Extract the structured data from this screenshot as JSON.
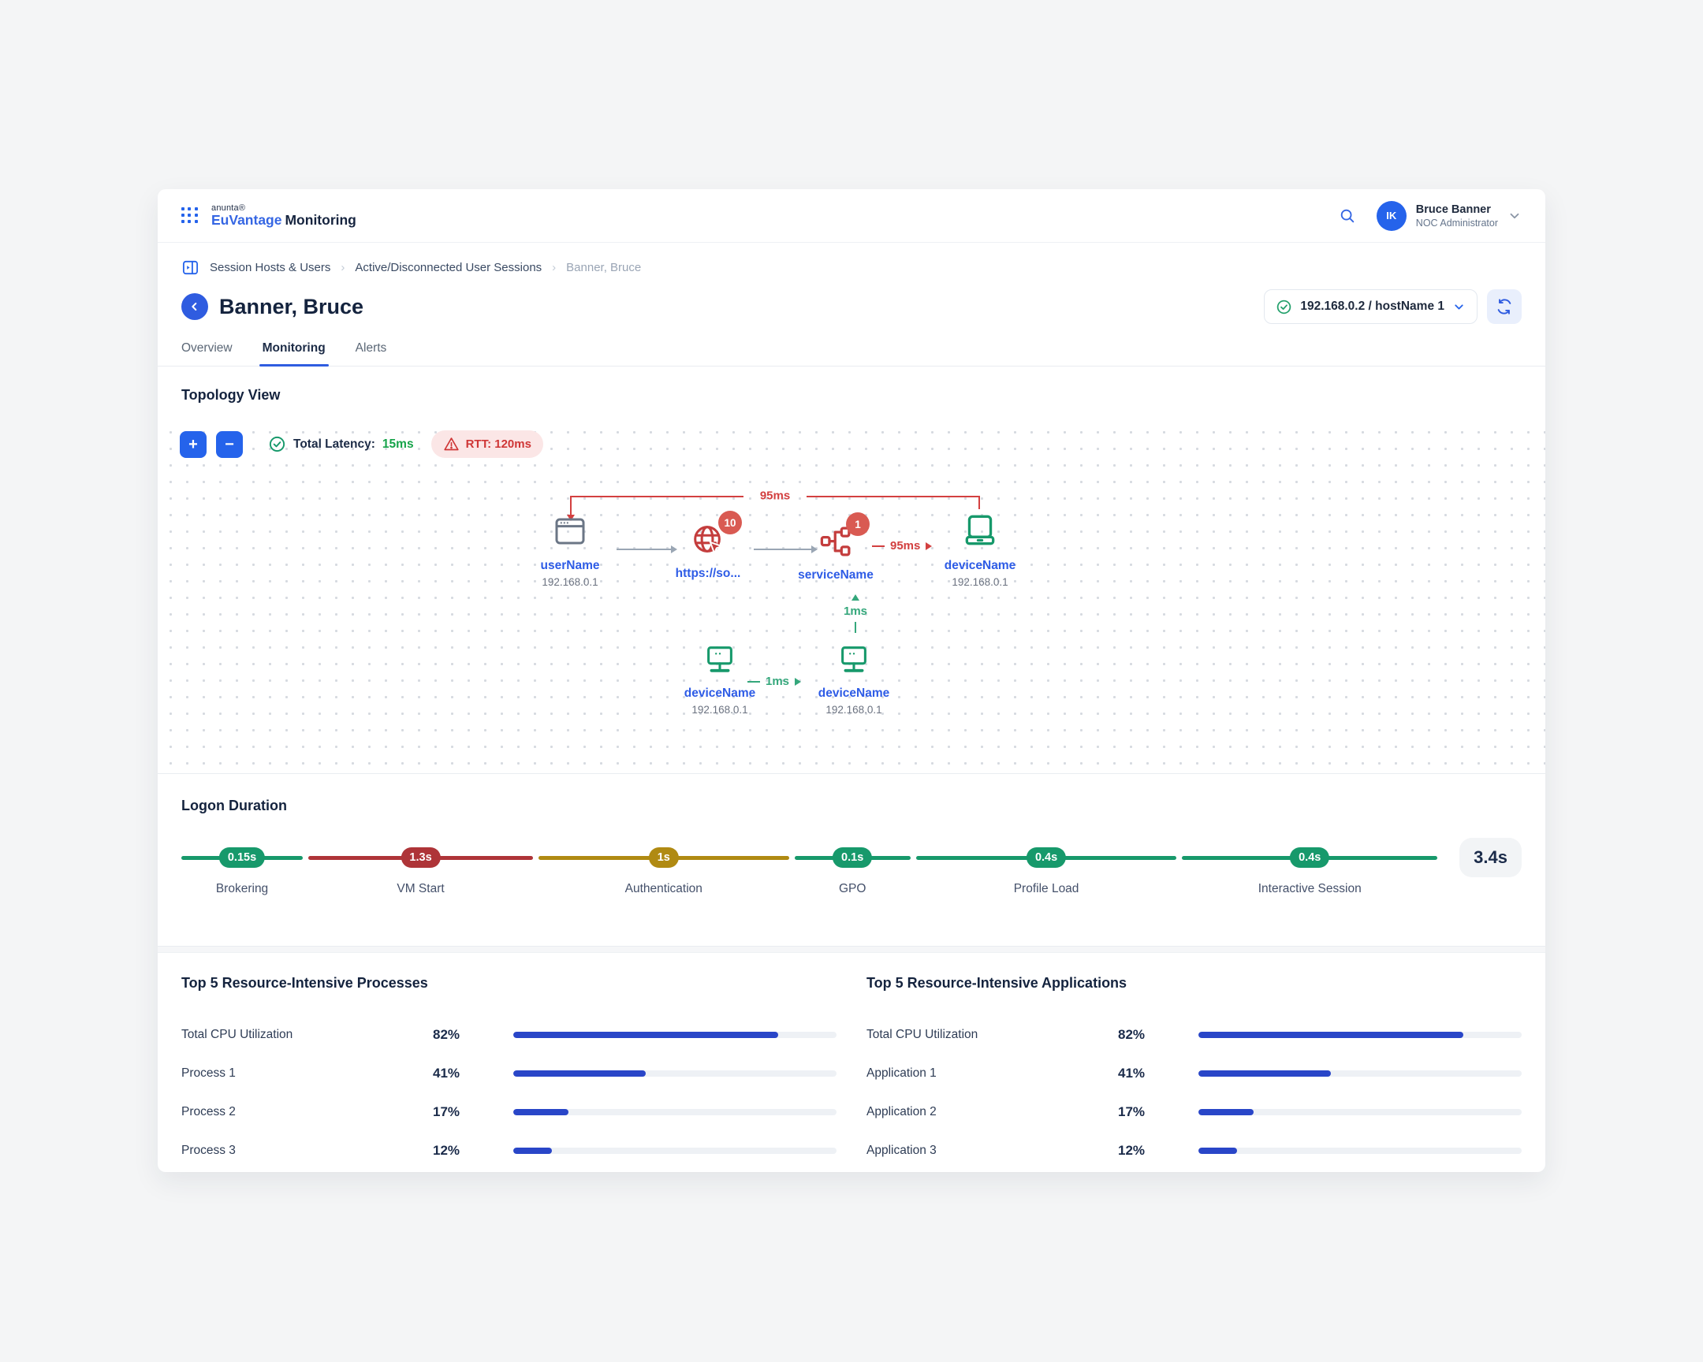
{
  "colors": {
    "accent_blue": "#2563eb",
    "navy": "#1b2b4a",
    "link_blue": "#2e5ce6",
    "success_green": "#17996b",
    "latency_green": "#16a34a",
    "danger_red": "#c43d3d",
    "badge_red": "#d95a52",
    "warning_gold": "#b08a12",
    "timeline_red": "#ae3438",
    "bar_blue": "#2946c8",
    "rtt_bg": "#fbe6e6"
  },
  "header": {
    "brand_small": "anunta®",
    "brand_blue": "EuVantage",
    "brand_dark": "Monitoring",
    "user": {
      "initials": "IK",
      "name": "Bruce Banner",
      "role": "NOC Administrator"
    }
  },
  "breadcrumb": {
    "items": [
      "Session Hosts & Users",
      "Active/Disconnected User Sessions",
      "Banner, Bruce"
    ]
  },
  "page": {
    "title": "Banner, Bruce"
  },
  "toolbar": {
    "host": "192.168.0.2 / hostName 1"
  },
  "tabs": [
    {
      "label": "Overview",
      "active": false
    },
    {
      "label": "Monitoring",
      "active": true
    },
    {
      "label": "Alerts",
      "active": false
    }
  ],
  "topology": {
    "heading": "Topology View",
    "zoom_in_label": "+",
    "zoom_out_label": "−",
    "latency_label": "Total Latency:",
    "latency_value": "15ms",
    "rtt_text": "RTT: 120ms",
    "top_link_label": "95ms",
    "mid_link_label": "95ms",
    "vert_link_label": "1ms",
    "bottom_link_label": "1ms",
    "nodes": [
      {
        "label": "userName",
        "ip": "192.168.0.1"
      },
      {
        "label": "https://so...",
        "ip": "",
        "badge": "10"
      },
      {
        "label": "serviceName",
        "ip": "",
        "badge": "1"
      },
      {
        "label": "deviceName",
        "ip": "192.168.0.1"
      },
      {
        "label": "deviceName",
        "ip": "192.168.0.1"
      },
      {
        "label": "deviceName",
        "ip": "192.168.0.1"
      }
    ]
  },
  "logon": {
    "heading": "Logon Duration",
    "total": "3.4s",
    "phases": [
      {
        "label": "Brokering",
        "value": "0.15s",
        "color": "#17996b",
        "grow": "8"
      },
      {
        "label": "VM Start",
        "value": "1.3s",
        "color": "#ae3438",
        "grow": "20.5"
      },
      {
        "label": "Authentication",
        "value": "1s",
        "color": "#b08a12",
        "grow": "20"
      },
      {
        "label": "GPO",
        "value": "0.1s",
        "color": "#17996b",
        "grow": "10.3"
      },
      {
        "label": "Profile Load",
        "value": "0.4s",
        "color": "#17996b",
        "grow": "22.6"
      },
      {
        "label": "Interactive Session",
        "value": "0.4s",
        "color": "#17996b",
        "grow": "17.6"
      }
    ]
  },
  "panels": [
    {
      "heading": "Top 5 Resource-Intensive Processes",
      "rows": [
        {
          "label": "Total CPU Utilization",
          "pct": "82%",
          "value": 82
        },
        {
          "label": "Process 1",
          "pct": "41%",
          "value": 41
        },
        {
          "label": "Process 2",
          "pct": "17%",
          "value": 17
        },
        {
          "label": "Process 3",
          "pct": "12%",
          "value": 12
        }
      ]
    },
    {
      "heading": "Top 5 Resource-Intensive Applications",
      "rows": [
        {
          "label": "Total CPU Utilization",
          "pct": "82%",
          "value": 82
        },
        {
          "label": "Application 1",
          "pct": "41%",
          "value": 41
        },
        {
          "label": "Application 2",
          "pct": "17%",
          "value": 17
        },
        {
          "label": "Application 3",
          "pct": "12%",
          "value": 12
        }
      ]
    }
  ]
}
